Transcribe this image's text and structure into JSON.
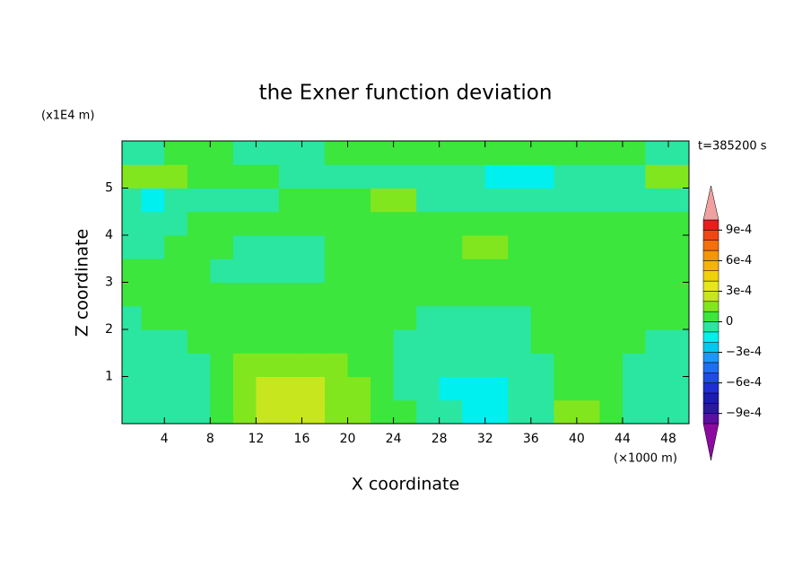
{
  "chart_data": {
    "type": "contour",
    "title": "the Exner function deviation",
    "x_label": "X coordinate",
    "y_label": "Z coordinate",
    "x_unit": "(×1000 m)",
    "y_unit": "(x1E4 m)",
    "time_label": "t=385200 s",
    "xlim": [
      0.3,
      49.8
    ],
    "ylim": [
      0,
      6
    ],
    "xticks": [
      4,
      8,
      12,
      16,
      20,
      24,
      28,
      32,
      36,
      40,
      44,
      48
    ],
    "yticks": [
      1,
      2,
      3,
      4,
      5
    ],
    "x": [
      1,
      3,
      5,
      7,
      9,
      11,
      13,
      15,
      17,
      19,
      21,
      23,
      25,
      27,
      29,
      31,
      33,
      35,
      37,
      39,
      41,
      43,
      45,
      47,
      49
    ],
    "y": [
      0.25,
      0.75,
      1.25,
      1.75,
      2.25,
      2.75,
      3.25,
      3.75,
      4.25,
      4.75,
      5.25,
      5.75
    ],
    "z": [
      [
        -5e-05,
        -5e-05,
        -5e-05,
        -5e-05,
        5e-05,
        0.00015,
        0.00025,
        0.00025,
        0.00025,
        0.00015,
        0.00015,
        5e-05,
        5e-05,
        -5e-05,
        -5e-05,
        -0.00015,
        -0.00015,
        -5e-05,
        -5e-05,
        0.00015,
        0.00015,
        5e-05,
        -5e-05,
        -5e-05,
        -5e-05
      ],
      [
        -5e-05,
        -5e-05,
        -5e-05,
        -5e-05,
        5e-05,
        0.00015,
        0.00025,
        0.00025,
        0.00025,
        0.00015,
        0.00015,
        5e-05,
        -5e-05,
        -5e-05,
        -0.00015,
        -0.00015,
        -0.00015,
        -5e-05,
        -5e-05,
        5e-05,
        5e-05,
        5e-05,
        -5e-05,
        -5e-05,
        -5e-05
      ],
      [
        -5e-05,
        -5e-05,
        -5e-05,
        -5e-05,
        5e-05,
        0.00015,
        0.00015,
        0.00015,
        0.00015,
        0.00015,
        5e-05,
        5e-05,
        -5e-05,
        -5e-05,
        -5e-05,
        -5e-05,
        -5e-05,
        -5e-05,
        -5e-05,
        5e-05,
        5e-05,
        5e-05,
        -5e-05,
        -5e-05,
        -5e-05
      ],
      [
        -5e-05,
        -5e-05,
        -5e-05,
        5e-05,
        5e-05,
        5e-05,
        5e-05,
        5e-05,
        5e-05,
        5e-05,
        5e-05,
        5e-05,
        -5e-05,
        -5e-05,
        -5e-05,
        -5e-05,
        -5e-05,
        -5e-05,
        5e-05,
        5e-05,
        5e-05,
        5e-05,
        5e-05,
        -5e-05,
        -5e-05
      ],
      [
        -5e-05,
        5e-05,
        5e-05,
        5e-05,
        5e-05,
        5e-05,
        5e-05,
        5e-05,
        5e-05,
        5e-05,
        5e-05,
        5e-05,
        5e-05,
        -5e-05,
        -5e-05,
        -5e-05,
        -5e-05,
        -5e-05,
        5e-05,
        5e-05,
        5e-05,
        5e-05,
        5e-05,
        5e-05,
        5e-05
      ],
      [
        5e-05,
        5e-05,
        5e-05,
        5e-05,
        5e-05,
        5e-05,
        5e-05,
        5e-05,
        5e-05,
        5e-05,
        5e-05,
        5e-05,
        5e-05,
        5e-05,
        5e-05,
        5e-05,
        5e-05,
        5e-05,
        5e-05,
        5e-05,
        5e-05,
        5e-05,
        5e-05,
        5e-05,
        5e-05
      ],
      [
        5e-05,
        5e-05,
        5e-05,
        5e-05,
        -5e-05,
        -5e-05,
        -5e-05,
        -5e-05,
        -5e-05,
        5e-05,
        5e-05,
        5e-05,
        5e-05,
        5e-05,
        5e-05,
        5e-05,
        5e-05,
        5e-05,
        5e-05,
        5e-05,
        5e-05,
        5e-05,
        5e-05,
        5e-05,
        5e-05
      ],
      [
        -5e-05,
        -5e-05,
        5e-05,
        5e-05,
        5e-05,
        -5e-05,
        -5e-05,
        -5e-05,
        -5e-05,
        5e-05,
        5e-05,
        5e-05,
        5e-05,
        5e-05,
        5e-05,
        0.00015,
        0.00015,
        5e-05,
        5e-05,
        5e-05,
        5e-05,
        5e-05,
        5e-05,
        5e-05,
        5e-05
      ],
      [
        -5e-05,
        -5e-05,
        -5e-05,
        5e-05,
        5e-05,
        5e-05,
        5e-05,
        5e-05,
        5e-05,
        5e-05,
        5e-05,
        5e-05,
        5e-05,
        5e-05,
        5e-05,
        5e-05,
        5e-05,
        5e-05,
        5e-05,
        5e-05,
        5e-05,
        5e-05,
        5e-05,
        5e-05,
        5e-05
      ],
      [
        -5e-05,
        -0.00015,
        -5e-05,
        -5e-05,
        -5e-05,
        -5e-05,
        -5e-05,
        5e-05,
        5e-05,
        5e-05,
        5e-05,
        0.00015,
        0.00015,
        -5e-05,
        -5e-05,
        -5e-05,
        -5e-05,
        -5e-05,
        -5e-05,
        -5e-05,
        -5e-05,
        -5e-05,
        -5e-05,
        -5e-05,
        -5e-05
      ],
      [
        0.00015,
        0.00015,
        0.00015,
        5e-05,
        5e-05,
        5e-05,
        5e-05,
        -5e-05,
        -5e-05,
        -5e-05,
        -5e-05,
        -5e-05,
        -5e-05,
        -5e-05,
        -5e-05,
        -5e-05,
        -0.00015,
        -0.00015,
        -0.00015,
        -5e-05,
        -5e-05,
        -5e-05,
        -5e-05,
        0.00015,
        0.00015
      ],
      [
        -5e-05,
        -5e-05,
        5e-05,
        5e-05,
        5e-05,
        -5e-05,
        -5e-05,
        -5e-05,
        -5e-05,
        5e-05,
        5e-05,
        5e-05,
        5e-05,
        5e-05,
        5e-05,
        5e-05,
        5e-05,
        5e-05,
        5e-05,
        5e-05,
        5e-05,
        5e-05,
        5e-05,
        -5e-05,
        -5e-05
      ]
    ],
    "levels": [
      -0.001,
      -0.0009,
      -0.0008,
      -0.0007,
      -0.0006,
      -0.0005,
      -0.0004,
      -0.0003,
      -0.0002,
      -0.0001,
      0,
      0.0001,
      0.0002,
      0.0003,
      0.0004,
      0.0005,
      0.0006,
      0.0007,
      0.0008,
      0.0009,
      0.001
    ],
    "colors": [
      "#8c0aa0",
      "#5a10a0",
      "#2a1a9a",
      "#1a1ab4",
      "#1e2ed2",
      "#1e4be6",
      "#1e6ef0",
      "#1e96f5",
      "#00c8f0",
      "#00f0f0",
      "#2ae6a0",
      "#3ce63c",
      "#82e61e",
      "#c8e61e",
      "#e6e61e",
      "#f0d20a",
      "#f5b40a",
      "#f5960a",
      "#f5700a",
      "#f04614",
      "#e61e1e",
      "#f0a0a0"
    ],
    "colorbar_ticks": [
      {
        "value": 0.0009,
        "label": "9e-4"
      },
      {
        "value": 0.0006,
        "label": "6e-4"
      },
      {
        "value": 0.0003,
        "label": "3e-4"
      },
      0,
      {
        "value": -0.0003,
        "label": "−3e-4"
      },
      {
        "value": -0.0006,
        "label": "−6e-4"
      },
      {
        "value": -0.0009,
        "label": "−9e-4"
      }
    ]
  }
}
